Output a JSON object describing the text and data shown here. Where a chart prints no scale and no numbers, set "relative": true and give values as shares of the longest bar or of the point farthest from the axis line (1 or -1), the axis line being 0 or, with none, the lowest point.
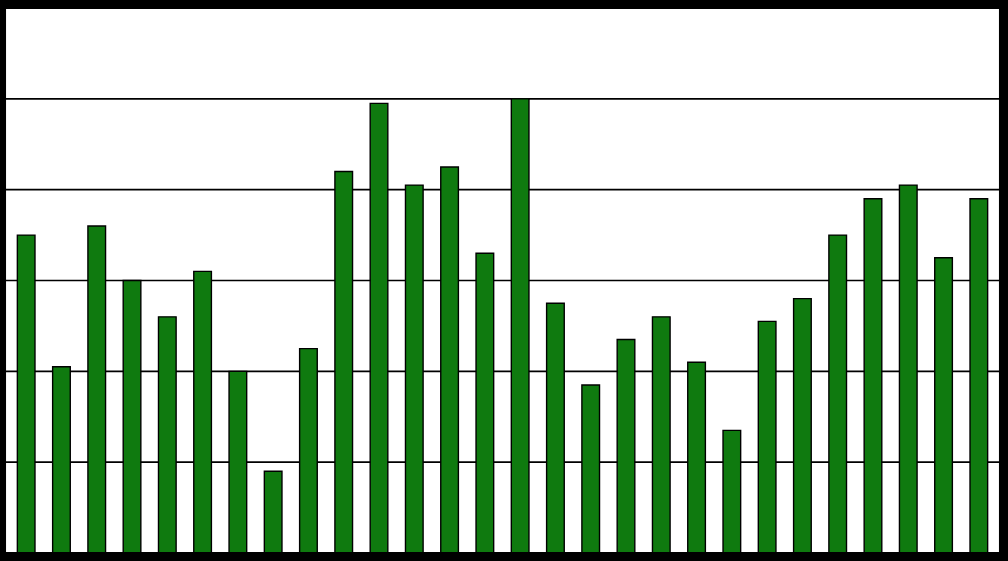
{
  "chart_data": {
    "type": "bar",
    "relative": true,
    "grid": "y",
    "color": "#0f7a0f",
    "categories": [
      null,
      null,
      null,
      null,
      null,
      null,
      null,
      null,
      null,
      null,
      null,
      null,
      null,
      null,
      null,
      null,
      null,
      null,
      null,
      null,
      null,
      null,
      null,
      null,
      null,
      null,
      null,
      null
    ],
    "values": [
      0.7,
      0.41,
      0.72,
      0.6,
      0.52,
      0.62,
      0.4,
      0.18,
      0.45,
      0.84,
      0.99,
      0.81,
      0.85,
      0.66,
      1,
      0.55,
      0.37,
      0.47,
      0.52,
      0.42,
      0.27,
      0.51,
      0.56,
      0.7,
      0.78,
      0.81,
      0.65,
      0.78
    ]
  }
}
